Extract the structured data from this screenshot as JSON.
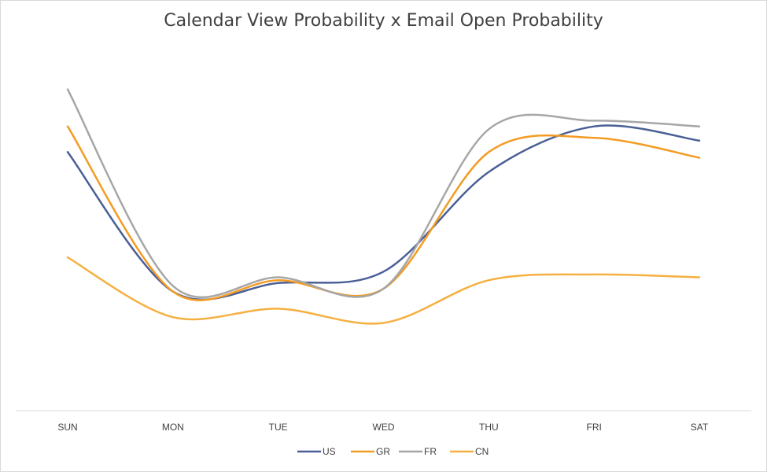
{
  "chart_data": {
    "type": "line",
    "title": "Calendar View Probability x Email Open Probability",
    "xlabel": "",
    "ylabel": "",
    "categories": [
      "SUN",
      "MON",
      "TUE",
      "WED",
      "THU",
      "FRI",
      "SAT"
    ],
    "smooth": true,
    "grid": false,
    "y_axis_labels_shown": false,
    "ylim": [
      0,
      100
    ],
    "legend": "bottom",
    "series": [
      {
        "name": "US",
        "color": "#4a5f96",
        "values": [
          77,
          28,
          31,
          35,
          70,
          86,
          81
        ]
      },
      {
        "name": "GR",
        "color": "#f39c23",
        "values": [
          86,
          28,
          32,
          29,
          77,
          82,
          75
        ]
      },
      {
        "name": "FR",
        "color": "#a6a6a6",
        "values": [
          99,
          30,
          33,
          29,
          85,
          88,
          86
        ]
      },
      {
        "name": "CN",
        "color": "#f5b041",
        "values": [
          40,
          19,
          22,
          17,
          32,
          34,
          33
        ]
      }
    ]
  }
}
